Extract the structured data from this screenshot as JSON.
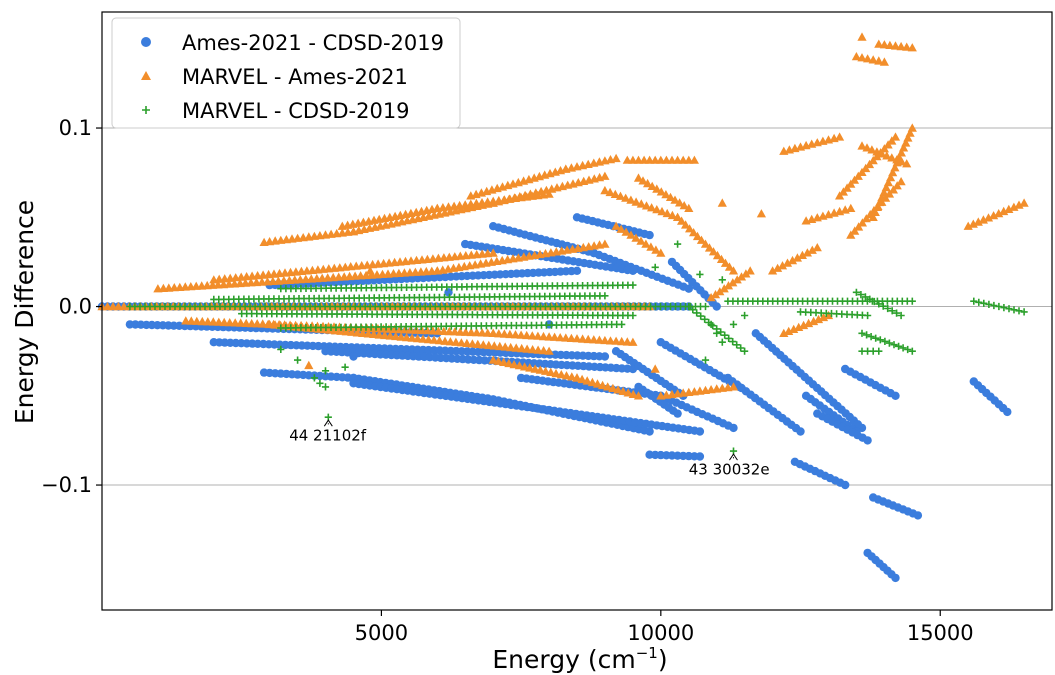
{
  "chart_data": {
    "type": "scatter",
    "title": "",
    "xlabel": "Energy (cm",
    "xlabel_sup": "−1",
    "xlabel_end": ")",
    "ylabel": "Energy Difference",
    "xlim": [
      0,
      17000
    ],
    "ylim": [
      -0.17,
      0.165
    ],
    "xticks": [
      5000,
      10000,
      15000
    ],
    "xtick_labels": [
      "5000",
      "10000",
      "15000"
    ],
    "yticks": [
      -0.1,
      0.0,
      0.1
    ],
    "ytick_labels": [
      "−0.1",
      "0.0",
      "0.1"
    ],
    "grid": "horizontal",
    "legend_position": "top-left",
    "series": [
      {
        "name": "Ames-2021 - CDSD-2019",
        "marker": "circle",
        "color": "#3b7ddd",
        "segments": [
          [
            [
              0,
              0.0
            ],
            [
              10500,
              0.0
            ]
          ],
          [
            [
              500,
              -0.01
            ],
            [
              6000,
              -0.015
            ]
          ],
          [
            [
              2000,
              -0.02
            ],
            [
              9000,
              -0.028
            ]
          ],
          [
            [
              3000,
              0.012
            ],
            [
              8500,
              0.02
            ]
          ],
          [
            [
              4000,
              -0.025
            ],
            [
              9500,
              -0.035
            ]
          ],
          [
            [
              2900,
              -0.037
            ],
            [
              4500,
              -0.04
            ],
            [
              7000,
              -0.052
            ],
            [
              9800,
              -0.07
            ]
          ],
          [
            [
              4500,
              -0.043
            ],
            [
              8000,
              -0.058
            ],
            [
              10700,
              -0.07
            ]
          ],
          [
            [
              7500,
              -0.04
            ],
            [
              10000,
              -0.05
            ],
            [
              11300,
              -0.068
            ]
          ],
          [
            [
              7000,
              0.045
            ],
            [
              8800,
              0.03
            ],
            [
              10500,
              0.01
            ]
          ],
          [
            [
              6500,
              0.035
            ],
            [
              9500,
              0.02
            ]
          ],
          [
            [
              8500,
              0.05
            ],
            [
              9800,
              0.04
            ]
          ],
          [
            [
              9200,
              -0.025
            ],
            [
              10400,
              -0.05
            ]
          ],
          [
            [
              9600,
              -0.045
            ],
            [
              10300,
              -0.06
            ]
          ],
          [
            [
              10000,
              -0.02
            ],
            [
              11400,
              -0.045
            ]
          ],
          [
            [
              9800,
              -0.083
            ],
            [
              10700,
              -0.084
            ]
          ],
          [
            [
              11200,
              -0.04
            ],
            [
              12500,
              -0.07
            ]
          ],
          [
            [
              10200,
              0.025
            ],
            [
              11000,
              0.0
            ]
          ],
          [
            [
              11700,
              -0.015
            ],
            [
              13600,
              -0.068
            ]
          ],
          [
            [
              12400,
              -0.087
            ],
            [
              13300,
              -0.1
            ]
          ],
          [
            [
              12600,
              -0.05
            ],
            [
              13500,
              -0.07
            ]
          ],
          [
            [
              12800,
              -0.06
            ],
            [
              13700,
              -0.075
            ]
          ],
          [
            [
              13300,
              -0.035
            ],
            [
              14200,
              -0.05
            ]
          ],
          [
            [
              13800,
              -0.107
            ],
            [
              14600,
              -0.117
            ]
          ],
          [
            [
              13700,
              -0.138
            ],
            [
              14200,
              -0.152
            ]
          ],
          [
            [
              15600,
              -0.042
            ],
            [
              16200,
              -0.059
            ]
          ]
        ],
        "points": [
          [
            4500,
            -0.028
          ],
          [
            6200,
            0.008
          ],
          [
            8000,
            -0.01
          ]
        ]
      },
      {
        "name": "MARVEL - Ames-2021",
        "marker": "triangle",
        "color": "#f28e2b",
        "segments": [
          [
            [
              0,
              0.0
            ],
            [
              9800,
              0.0
            ]
          ],
          [
            [
              2900,
              0.036
            ],
            [
              4500,
              0.042
            ],
            [
              7000,
              0.058
            ],
            [
              9000,
              0.073
            ]
          ],
          [
            [
              4300,
              0.045
            ],
            [
              6000,
              0.055
            ],
            [
              8000,
              0.063
            ]
          ],
          [
            [
              6600,
              0.062
            ],
            [
              8300,
              0.077
            ],
            [
              9200,
              0.083
            ]
          ],
          [
            [
              9400,
              0.082
            ],
            [
              10600,
              0.082
            ]
          ],
          [
            [
              1000,
              0.01
            ],
            [
              6000,
              0.02
            ],
            [
              9000,
              0.035
            ]
          ],
          [
            [
              2000,
              0.015
            ],
            [
              7000,
              0.03
            ]
          ],
          [
            [
              1500,
              -0.008
            ],
            [
              7000,
              -0.015
            ],
            [
              9500,
              -0.02
            ]
          ],
          [
            [
              3000,
              -0.01
            ],
            [
              8000,
              -0.025
            ]
          ],
          [
            [
              7000,
              -0.03
            ],
            [
              8500,
              -0.04
            ],
            [
              9600,
              -0.05
            ]
          ],
          [
            [
              9000,
              0.065
            ],
            [
              10300,
              0.05
            ],
            [
              11300,
              0.02
            ]
          ],
          [
            [
              9600,
              0.072
            ],
            [
              10500,
              0.055
            ]
          ],
          [
            [
              9200,
              0.045
            ],
            [
              10000,
              0.03
            ]
          ],
          [
            [
              10000,
              -0.05
            ],
            [
              11300,
              -0.045
            ]
          ],
          [
            [
              10900,
              0.005
            ],
            [
              11600,
              0.02
            ]
          ],
          [
            [
              12000,
              0.02
            ],
            [
              12800,
              0.033
            ]
          ],
          [
            [
              12200,
              0.087
            ],
            [
              13200,
              0.095
            ]
          ],
          [
            [
              12600,
              0.048
            ],
            [
              13400,
              0.055
            ]
          ],
          [
            [
              13200,
              0.062
            ],
            [
              14200,
              0.095
            ]
          ],
          [
            [
              13400,
              0.04
            ],
            [
              14300,
              0.07
            ]
          ],
          [
            [
              13600,
              0.09
            ],
            [
              14400,
              0.08
            ]
          ],
          [
            [
              13800,
              0.05
            ],
            [
              14500,
              0.1
            ]
          ],
          [
            [
              13500,
              0.14
            ],
            [
              14000,
              0.137
            ]
          ],
          [
            [
              13900,
              0.147
            ],
            [
              14500,
              0.145
            ]
          ],
          [
            [
              12200,
              -0.015
            ],
            [
              13000,
              -0.005
            ]
          ],
          [
            [
              15500,
              0.045
            ],
            [
              16500,
              0.058
            ]
          ]
        ],
        "points": [
          [
            13600,
            0.151
          ],
          [
            3700,
            -0.033
          ],
          [
            4800,
            0.02
          ],
          [
            9900,
            -0.035
          ],
          [
            11100,
            0.058
          ],
          [
            11800,
            0.052
          ]
        ]
      },
      {
        "name": "MARVEL - CDSD-2019",
        "marker": "plus",
        "color": "#2ca02c",
        "segments": [
          [
            [
              500,
              0.0
            ],
            [
              10800,
              0.0
            ]
          ],
          [
            [
              2000,
              0.004
            ],
            [
              9000,
              0.006
            ]
          ],
          [
            [
              2500,
              -0.004
            ],
            [
              9500,
              -0.005
            ]
          ],
          [
            [
              3200,
              0.01
            ],
            [
              9500,
              0.012
            ]
          ],
          [
            [
              3200,
              -0.012
            ],
            [
              9300,
              -0.01
            ]
          ],
          [
            [
              10500,
              0.0
            ],
            [
              11500,
              -0.025
            ]
          ],
          [
            [
              11200,
              0.003
            ],
            [
              14500,
              0.003
            ]
          ],
          [
            [
              12500,
              -0.003
            ],
            [
              13700,
              -0.005
            ]
          ],
          [
            [
              13500,
              0.008
            ],
            [
              14300,
              -0.005
            ]
          ],
          [
            [
              13600,
              -0.015
            ],
            [
              14500,
              -0.025
            ]
          ],
          [
            [
              13600,
              -0.025
            ],
            [
              13900,
              -0.025
            ]
          ],
          [
            [
              15600,
              0.003
            ],
            [
              16500,
              -0.003
            ]
          ]
        ],
        "points": [
          [
            10300,
            0.035
          ],
          [
            9900,
            0.022
          ],
          [
            3500,
            -0.03
          ],
          [
            3200,
            -0.024
          ],
          [
            3800,
            -0.04
          ],
          [
            3900,
            -0.043
          ],
          [
            4000,
            -0.045
          ],
          [
            4000,
            -0.036
          ],
          [
            4350,
            -0.034
          ],
          [
            4050,
            -0.062
          ],
          [
            11300,
            -0.081
          ],
          [
            11100,
            -0.02
          ],
          [
            10800,
            -0.03
          ],
          [
            11100,
            0.015
          ],
          [
            10900,
            -0.01
          ],
          [
            11000,
            -0.015
          ],
          [
            10700,
            0.018
          ],
          [
            11300,
            -0.01
          ],
          [
            11500,
            -0.005
          ]
        ]
      }
    ],
    "annotations": [
      {
        "text": "44 21102f",
        "x": 4050,
        "y": -0.062,
        "text_x": 3350,
        "text_y": -0.075
      },
      {
        "text": "43 30032e",
        "x": 11300,
        "y": -0.081,
        "text_x": 10500,
        "text_y": -0.094
      }
    ]
  }
}
